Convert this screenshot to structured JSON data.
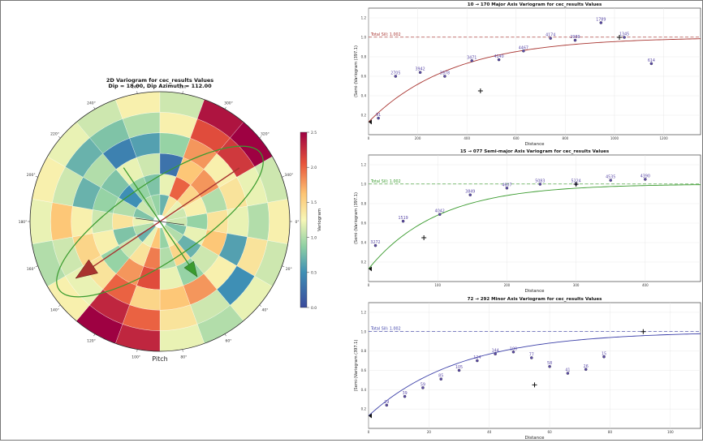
{
  "chart_data": [
    {
      "type": "polar-heatmap",
      "title": "2D Variogram for cec_results Values",
      "subtitle": "Dip = 18.00, Dip Azimuth = 112.00",
      "xlabel": "Pitch",
      "colorbar_label": "Variogram",
      "colorbar_ticks": [
        "0.0",
        "0.5",
        "1.0",
        "1.5",
        "2.0",
        "2.5"
      ],
      "color_range": [
        0,
        2.5
      ],
      "angle_labels": [
        "0°",
        "20°",
        "40°",
        "60°",
        "80°",
        "100°",
        "120°",
        "140°",
        "160°",
        "180°",
        "200°",
        "220°",
        "240°",
        "260°",
        "280°",
        "300°",
        "320°",
        "340°"
      ],
      "sectors": 18,
      "rings": 6,
      "cell_values": [
        [
          1.1,
          0.9,
          1.4,
          1.2,
          1.0,
          1.3
        ],
        [
          0.8,
          1.2,
          1.6,
          0.6,
          1.4,
          1.1
        ],
        [
          1.0,
          0.7,
          1.1,
          1.3,
          0.5,
          1.2
        ],
        [
          1.3,
          1.5,
          0.9,
          1.8,
          1.1,
          1.0
        ],
        [
          0.9,
          1.0,
          1.2,
          1.6,
          1.4,
          1.2
        ],
        [
          1.6,
          1.9,
          2.1,
          1.5,
          2.0,
          2.3
        ],
        [
          1.2,
          1.4,
          1.8,
          2.0,
          2.3,
          2.6
        ],
        [
          0.7,
          1.1,
          0.9,
          1.4,
          1.2,
          1.3
        ],
        [
          1.0,
          0.8,
          1.3,
          1.5,
          1.1,
          1.0
        ],
        [
          1.2,
          1.4,
          1.1,
          1.3,
          1.6,
          1.2
        ],
        [
          0.8,
          1.0,
          0.9,
          0.7,
          1.1,
          1.3
        ],
        [
          1.1,
          0.5,
          0.8,
          1.0,
          0.7,
          1.2
        ],
        [
          1.0,
          0.9,
          1.2,
          0.4,
          0.8,
          1.1
        ],
        [
          0.9,
          0.8,
          1.1,
          0.6,
          1.0,
          1.3
        ],
        [
          0.7,
          1.2,
          0.3,
          0.9,
          1.3,
          1.1
        ],
        [
          1.4,
          2.0,
          1.6,
          1.8,
          2.1,
          2.4
        ],
        [
          1.2,
          1.5,
          1.8,
          1.3,
          2.2,
          2.5
        ],
        [
          1.1,
          1.3,
          1.0,
          1.4,
          1.2,
          1.1
        ]
      ],
      "major_arrow_color": "#a8332f",
      "minor_arrow_color": "#3a9b2e",
      "ellipse_color": "#3a9b2e"
    },
    {
      "type": "scatter+line",
      "title": "10 → 170 Major Axis Variogram for cec_results Values",
      "xlabel": "Distance",
      "ylabel": "(Semi-)Variogram (397.1)",
      "xlim": [
        0,
        1350
      ],
      "ylim": [
        0,
        1.3
      ],
      "xticks": [
        0,
        200,
        400,
        600,
        800,
        1000,
        1200
      ],
      "yticks": [
        0.2,
        0.4,
        0.6,
        0.8,
        1.0,
        1.2
      ],
      "sill_label": "Total Sill: 1.002",
      "sill": 1.002,
      "range": 1020,
      "nugget": 0.13,
      "color": "#a8332f",
      "label_color": "#5b4aa8",
      "points": [
        {
          "x": 40,
          "y": 0.17,
          "label": "91"
        },
        {
          "x": 110,
          "y": 0.6,
          "label": "2705"
        },
        {
          "x": 210,
          "y": 0.64,
          "label": "3942"
        },
        {
          "x": 310,
          "y": 0.6,
          "label": "3978"
        },
        {
          "x": 420,
          "y": 0.76,
          "label": "3471"
        },
        {
          "x": 530,
          "y": 0.77,
          "label": "4140"
        },
        {
          "x": 630,
          "y": 0.86,
          "label": "4467"
        },
        {
          "x": 740,
          "y": 0.99,
          "label": "4174"
        },
        {
          "x": 840,
          "y": 0.97,
          "label": "2989"
        },
        {
          "x": 945,
          "y": 1.15,
          "label": "1789"
        },
        {
          "x": 1040,
          "y": 1.0,
          "label": "1345"
        },
        {
          "x": 1150,
          "y": 0.73,
          "label": "614"
        }
      ],
      "plus_marker": {
        "x": 455,
        "y": 0.45
      },
      "range_marker": {
        "x": 1020,
        "y": 1.0
      }
    },
    {
      "type": "scatter+line",
      "title": "15 → 077 Semi-major Axis Variogram for cec_results Values",
      "xlabel": "Distance",
      "ylabel": "(Semi-)Variogram (397.1)",
      "xlim": [
        0,
        480
      ],
      "ylim": [
        0,
        1.3
      ],
      "xticks": [
        0,
        100,
        200,
        300,
        400
      ],
      "yticks": [
        0.2,
        0.4,
        0.6,
        0.8,
        1.0,
        1.2
      ],
      "sill_label": "Total Sill: 1.002",
      "sill": 1.002,
      "range": 300,
      "nugget": 0.13,
      "color": "#3a9b2e",
      "label_color": "#5b4aa8",
      "points": [
        {
          "x": 10,
          "y": 0.37,
          "label": "3272"
        },
        {
          "x": 50,
          "y": 0.62,
          "label": "1519"
        },
        {
          "x": 103,
          "y": 0.69,
          "label": "4042"
        },
        {
          "x": 147,
          "y": 0.89,
          "label": "3849"
        },
        {
          "x": 200,
          "y": 0.96,
          "label": "4607"
        },
        {
          "x": 248,
          "y": 1.0,
          "label": "5083"
        },
        {
          "x": 300,
          "y": 1.0,
          "label": "5224"
        },
        {
          "x": 350,
          "y": 1.04,
          "label": "4535"
        },
        {
          "x": 400,
          "y": 1.05,
          "label": "4390"
        }
      ],
      "plus_marker": {
        "x": 80,
        "y": 0.45
      },
      "range_marker": {
        "x": 300,
        "y": 1.0
      }
    },
    {
      "type": "scatter+line",
      "title": "72 → 292 Minor Axis Variogram for cec_results Values",
      "xlabel": "Distance",
      "ylabel": "(Semi-)Variogram (397.1)",
      "xlim": [
        0,
        110
      ],
      "ylim": [
        0,
        1.3
      ],
      "xticks": [
        0,
        20,
        40,
        60,
        80,
        100
      ],
      "yticks": [
        0.2,
        0.4,
        0.6,
        0.8,
        1.0,
        1.2
      ],
      "sill_label": "Total Sill: 1.002",
      "sill": 1.002,
      "range": 91,
      "nugget": 0.13,
      "color": "#3b3fa8",
      "label_color": "#5b4aa8",
      "points": [
        {
          "x": 6,
          "y": 0.24,
          "label": "29"
        },
        {
          "x": 12,
          "y": 0.33,
          "label": "39"
        },
        {
          "x": 18,
          "y": 0.42,
          "label": "59"
        },
        {
          "x": 24,
          "y": 0.51,
          "label": "85"
        },
        {
          "x": 30,
          "y": 0.6,
          "label": "105"
        },
        {
          "x": 36,
          "y": 0.7,
          "label": "124"
        },
        {
          "x": 42,
          "y": 0.77,
          "label": "144"
        },
        {
          "x": 48,
          "y": 0.79,
          "label": "100"
        },
        {
          "x": 54,
          "y": 0.73,
          "label": "77"
        },
        {
          "x": 60,
          "y": 0.64,
          "label": "58"
        },
        {
          "x": 66,
          "y": 0.57,
          "label": "41"
        },
        {
          "x": 72,
          "y": 0.61,
          "label": "26"
        },
        {
          "x": 78,
          "y": 0.74,
          "label": "15"
        }
      ],
      "plus_marker": {
        "x": 55,
        "y": 0.45
      },
      "range_marker": {
        "x": 91,
        "y": 1.0
      }
    }
  ]
}
